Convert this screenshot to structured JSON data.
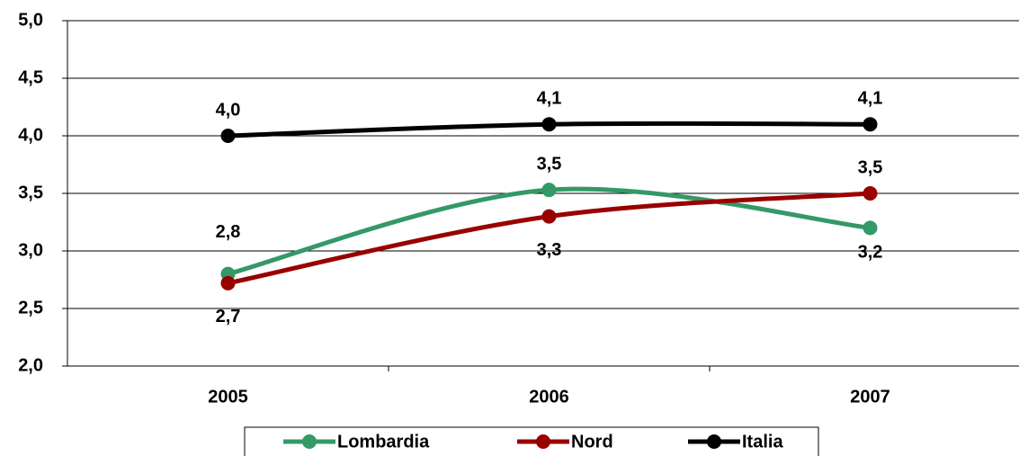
{
  "chart_data": {
    "type": "line",
    "categories": [
      "2005",
      "2006",
      "2007"
    ],
    "series": [
      {
        "name": "Lombardia",
        "color": "#339966",
        "values": [
          2.8,
          3.53,
          3.2
        ],
        "value_labels": [
          "2,8",
          "3,5",
          "3,2"
        ]
      },
      {
        "name": "Nord",
        "color": "#990000",
        "values": [
          2.72,
          3.3,
          3.5
        ],
        "value_labels": [
          "2,7",
          "3,3",
          "3,5"
        ]
      },
      {
        "name": "Italia",
        "color": "#000000",
        "values": [
          4.0,
          4.1,
          4.1
        ],
        "value_labels": [
          "4,0",
          "4,1",
          "4,1"
        ]
      }
    ],
    "ylim": [
      2,
      5
    ],
    "yticks": [
      {
        "value": 2,
        "label": "2,0"
      },
      {
        "value": 2.5,
        "label": "2,5"
      },
      {
        "value": 3,
        "label": "3,0"
      },
      {
        "value": 3.5,
        "label": "3,5"
      },
      {
        "value": 4,
        "label": "4,0"
      },
      {
        "value": 4.5,
        "label": "4,5"
      },
      {
        "value": 5,
        "label": "5,0"
      }
    ],
    "grid": true,
    "legend": "bottom"
  }
}
